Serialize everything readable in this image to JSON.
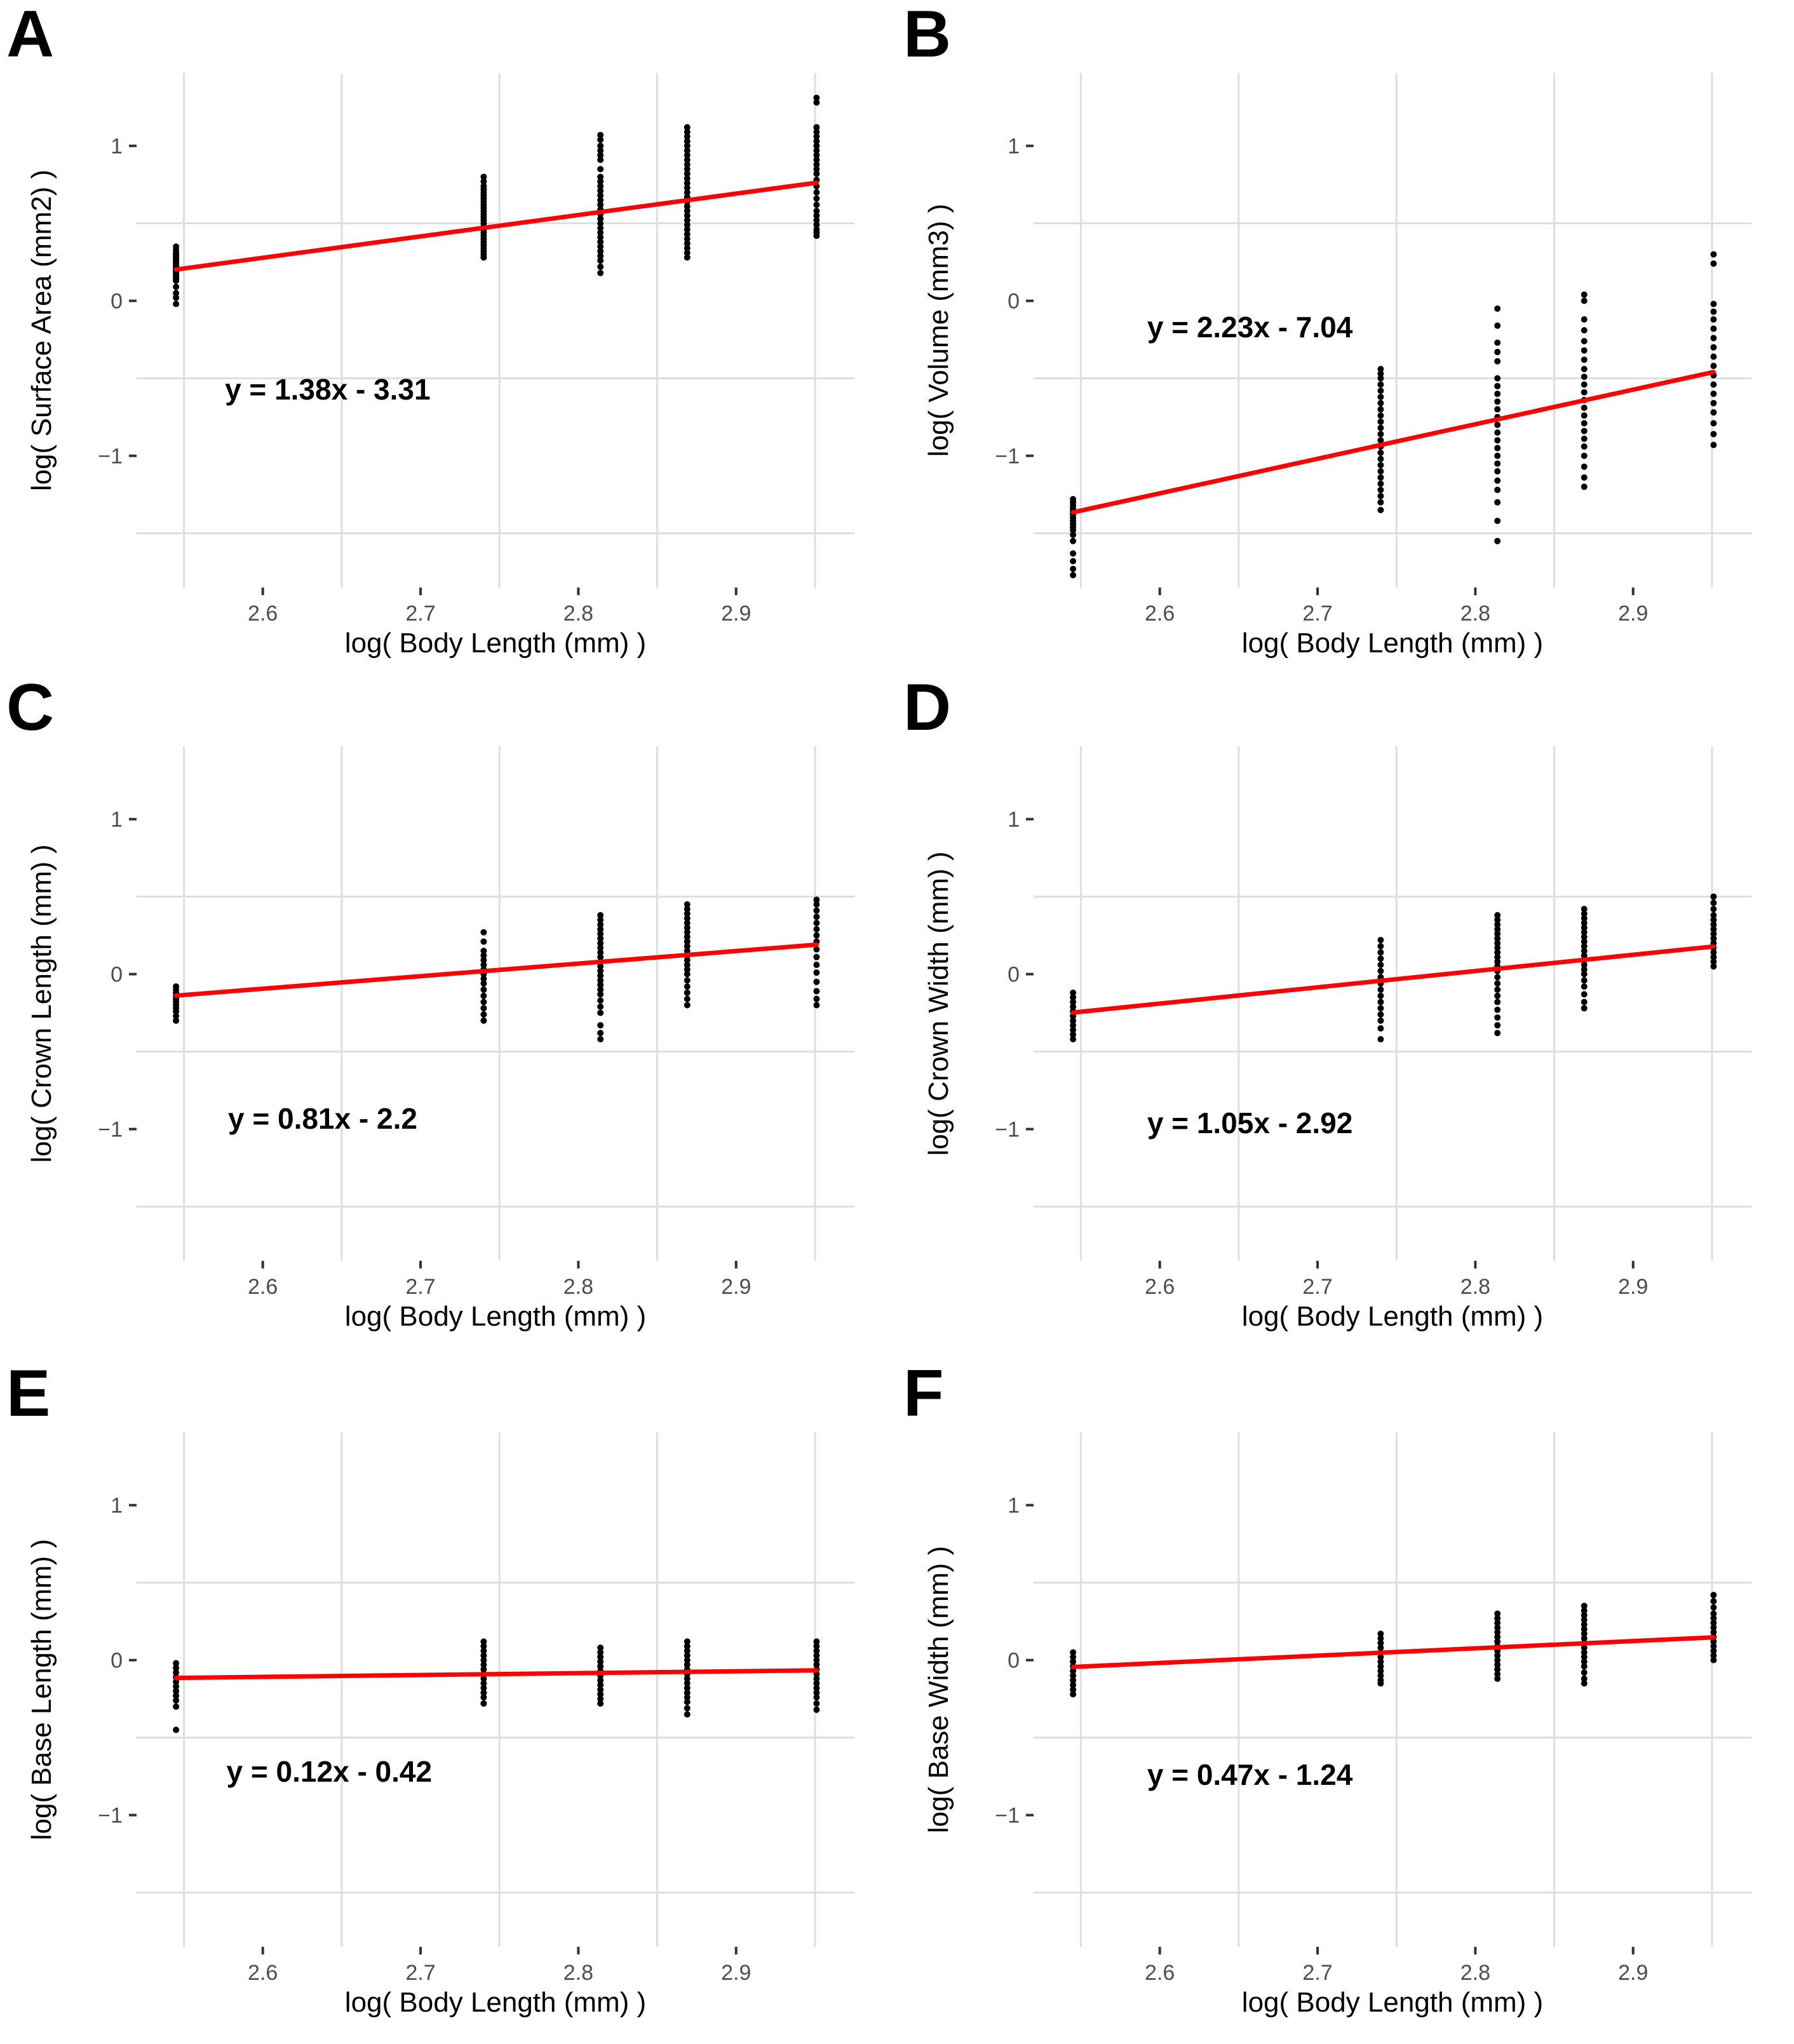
{
  "figure": {
    "background": "#FFFFFF",
    "panel_letters": [
      "A",
      "B",
      "C",
      "D",
      "E",
      "F"
    ]
  },
  "style": {
    "point_color": "#000000",
    "line_color": "#FF0000",
    "grid_color": "#DEDEDE",
    "tick_label_color": "#4D4D4D",
    "tick_mark_color": "#333333",
    "axis_title_color": "#000000",
    "equation_color": "#000000"
  },
  "axes_shared": {
    "xlim": [
      2.52,
      2.975
    ],
    "ylim": [
      -1.85,
      1.47
    ],
    "x_ticks": {
      "values": [
        2.6,
        2.7,
        2.8,
        2.9
      ],
      "labels": [
        "2.6",
        "2.7",
        "2.8",
        "2.9"
      ]
    },
    "y_ticks": {
      "values": [
        1,
        0,
        -1
      ],
      "labels": [
        "1",
        "0",
        "−1"
      ]
    },
    "grid_x": [
      2.55,
      2.65,
      2.75,
      2.85,
      2.95
    ],
    "grid_y": [
      0.5,
      -0.5,
      -1.5
    ],
    "grid_major_shown": false,
    "xlabel": "log( Body Length (mm) )"
  },
  "chart_data": [
    {
      "type": "scatter",
      "panel_label": "A",
      "xlabel": "log( Body Length (mm) )",
      "ylabel": "log( Surface Area (mm2) )",
      "equation": "y = 1.38x - 3.31",
      "slope": 1.38,
      "intercept": -3.31,
      "line_x": [
        2.545,
        2.951
      ],
      "eq_anchor": {
        "x": 2.576,
        "y": -0.57
      },
      "clusters": [
        {
          "x": 2.545,
          "ys": [
            0.35,
            0.33,
            0.31,
            0.3,
            0.29,
            0.28,
            0.27,
            0.26,
            0.25,
            0.24,
            0.23,
            0.22,
            0.21,
            0.2,
            0.19,
            0.18,
            0.17,
            0.16,
            0.15,
            0.14,
            0.13,
            0.09,
            0.05,
            0.02,
            -0.02
          ]
        },
        {
          "x": 2.74,
          "ys": [
            0.8,
            0.77,
            0.74,
            0.72,
            0.7,
            0.68,
            0.66,
            0.64,
            0.62,
            0.6,
            0.58,
            0.56,
            0.54,
            0.52,
            0.5,
            0.48,
            0.46,
            0.44,
            0.42,
            0.4,
            0.38,
            0.36,
            0.34,
            0.32,
            0.3,
            0.28
          ]
        },
        {
          "x": 2.814,
          "ys": [
            1.07,
            1.04,
            1.0,
            0.97,
            0.94,
            0.91,
            0.85,
            0.8,
            0.77,
            0.74,
            0.71,
            0.68,
            0.65,
            0.62,
            0.59,
            0.56,
            0.53,
            0.5,
            0.47,
            0.44,
            0.41,
            0.38,
            0.35,
            0.32,
            0.29,
            0.26,
            0.22,
            0.18
          ]
        },
        {
          "x": 2.869,
          "ys": [
            1.12,
            1.09,
            1.06,
            1.03,
            1.0,
            0.97,
            0.94,
            0.91,
            0.88,
            0.85,
            0.82,
            0.79,
            0.76,
            0.73,
            0.7,
            0.67,
            0.64,
            0.61,
            0.58,
            0.55,
            0.52,
            0.49,
            0.46,
            0.43,
            0.4,
            0.37,
            0.34,
            0.31,
            0.28
          ]
        },
        {
          "x": 2.951,
          "ys": [
            1.31,
            1.28,
            1.12,
            1.09,
            1.06,
            1.03,
            1.0,
            0.97,
            0.94,
            0.91,
            0.88,
            0.85,
            0.82,
            0.78,
            0.74,
            0.7,
            0.66,
            0.62,
            0.58,
            0.55,
            0.52,
            0.49,
            0.46,
            0.44,
            0.42
          ]
        }
      ]
    },
    {
      "type": "scatter",
      "panel_label": "B",
      "xlabel": "log( Body Length (mm) )",
      "ylabel": "log( Volume (mm3) )",
      "equation": "y = 2.23x - 7.04",
      "slope": 2.23,
      "intercept": -7.04,
      "line_x": [
        2.545,
        2.951
      ],
      "eq_anchor": {
        "x": 2.592,
        "y": -0.17
      },
      "clusters": [
        {
          "x": 2.545,
          "ys": [
            -1.28,
            -1.3,
            -1.32,
            -1.34,
            -1.36,
            -1.38,
            -1.4,
            -1.42,
            -1.44,
            -1.46,
            -1.48,
            -1.51,
            -1.55,
            -1.63,
            -1.68,
            -1.73,
            -1.77
          ]
        },
        {
          "x": 2.74,
          "ys": [
            -0.44,
            -0.47,
            -0.5,
            -0.54,
            -0.58,
            -0.62,
            -0.66,
            -0.7,
            -0.74,
            -0.78,
            -0.82,
            -0.86,
            -0.9,
            -0.94,
            -0.98,
            -1.02,
            -1.06,
            -1.1,
            -1.14,
            -1.18,
            -1.22,
            -1.26,
            -1.3,
            -1.35
          ]
        },
        {
          "x": 2.814,
          "ys": [
            -0.05,
            -0.16,
            -0.27,
            -0.33,
            -0.39,
            -0.5,
            -0.55,
            -0.6,
            -0.65,
            -0.7,
            -0.75,
            -0.8,
            -0.85,
            -0.9,
            -0.95,
            -1.0,
            -1.05,
            -1.1,
            -1.16,
            -1.22,
            -1.3,
            -1.42,
            -1.55
          ]
        },
        {
          "x": 2.869,
          "ys": [
            0.04,
            0.0,
            -0.12,
            -0.19,
            -0.26,
            -0.32,
            -0.38,
            -0.44,
            -0.49,
            -0.54,
            -0.59,
            -0.64,
            -0.69,
            -0.74,
            -0.79,
            -0.84,
            -0.89,
            -0.94,
            -1.0,
            -1.07,
            -1.14,
            -1.2
          ]
        },
        {
          "x": 2.951,
          "ys": [
            0.3,
            0.24,
            -0.02,
            -0.07,
            -0.12,
            -0.18,
            -0.24,
            -0.3,
            -0.36,
            -0.42,
            -0.48,
            -0.54,
            -0.6,
            -0.66,
            -0.72,
            -0.79,
            -0.86,
            -0.93
          ]
        }
      ]
    },
    {
      "type": "scatter",
      "panel_label": "C",
      "xlabel": "log( Body Length (mm) )",
      "ylabel": "log( Crown Length (mm) )",
      "equation": "y = 0.81x - 2.2",
      "slope": 0.81,
      "intercept": -2.2,
      "line_x": [
        2.545,
        2.951
      ],
      "eq_anchor": {
        "x": 2.578,
        "y": -0.93
      },
      "clusters": [
        {
          "x": 2.545,
          "ys": [
            -0.08,
            -0.1,
            -0.12,
            -0.14,
            -0.16,
            -0.18,
            -0.2,
            -0.22,
            -0.24,
            -0.27,
            -0.3
          ]
        },
        {
          "x": 2.74,
          "ys": [
            0.27,
            0.21,
            0.15,
            0.12,
            0.09,
            0.06,
            0.03,
            0.0,
            -0.03,
            -0.06,
            -0.1,
            -0.14,
            -0.18,
            -0.22,
            -0.26,
            -0.3
          ]
        },
        {
          "x": 2.814,
          "ys": [
            0.38,
            0.35,
            0.32,
            0.29,
            0.26,
            0.23,
            0.2,
            0.17,
            0.14,
            0.11,
            0.08,
            0.05,
            0.02,
            -0.01,
            -0.04,
            -0.07,
            -0.1,
            -0.13,
            -0.17,
            -0.21,
            -0.25,
            -0.33,
            -0.38,
            -0.42
          ]
        },
        {
          "x": 2.869,
          "ys": [
            0.45,
            0.42,
            0.39,
            0.36,
            0.33,
            0.3,
            0.27,
            0.24,
            0.21,
            0.18,
            0.15,
            0.12,
            0.09,
            0.06,
            0.03,
            0.0,
            -0.04,
            -0.08,
            -0.12,
            -0.16,
            -0.2
          ]
        },
        {
          "x": 2.951,
          "ys": [
            0.48,
            0.45,
            0.41,
            0.37,
            0.33,
            0.29,
            0.25,
            0.21,
            0.16,
            0.11,
            0.06,
            0.01,
            -0.05,
            -0.11,
            -0.16,
            -0.2
          ]
        }
      ]
    },
    {
      "type": "scatter",
      "panel_label": "D",
      "xlabel": "log( Body Length (mm) )",
      "ylabel": "log( Crown Width (mm) )",
      "equation": "y = 1.05x - 2.92",
      "slope": 1.05,
      "intercept": -2.92,
      "line_x": [
        2.545,
        2.951
      ],
      "eq_anchor": {
        "x": 2.592,
        "y": -0.96
      },
      "clusters": [
        {
          "x": 2.545,
          "ys": [
            -0.12,
            -0.15,
            -0.18,
            -0.21,
            -0.24,
            -0.27,
            -0.3,
            -0.33,
            -0.36,
            -0.39,
            -0.42
          ]
        },
        {
          "x": 2.74,
          "ys": [
            0.22,
            0.18,
            0.14,
            0.1,
            0.06,
            0.02,
            -0.02,
            -0.06,
            -0.1,
            -0.14,
            -0.18,
            -0.22,
            -0.26,
            -0.3,
            -0.35,
            -0.42
          ]
        },
        {
          "x": 2.814,
          "ys": [
            0.38,
            0.35,
            0.32,
            0.29,
            0.26,
            0.23,
            0.2,
            0.17,
            0.14,
            0.11,
            0.08,
            0.05,
            0.02,
            -0.02,
            -0.06,
            -0.1,
            -0.14,
            -0.18,
            -0.23,
            -0.28,
            -0.33,
            -0.38
          ]
        },
        {
          "x": 2.869,
          "ys": [
            0.42,
            0.39,
            0.36,
            0.33,
            0.3,
            0.27,
            0.24,
            0.21,
            0.18,
            0.15,
            0.12,
            0.09,
            0.06,
            0.03,
            0.0,
            -0.04,
            -0.08,
            -0.13,
            -0.18,
            -0.22
          ]
        },
        {
          "x": 2.951,
          "ys": [
            0.5,
            0.46,
            0.42,
            0.38,
            0.35,
            0.32,
            0.29,
            0.26,
            0.23,
            0.2,
            0.17,
            0.14,
            0.11,
            0.08,
            0.05
          ]
        }
      ]
    },
    {
      "type": "scatter",
      "panel_label": "E",
      "xlabel": "log( Body Length (mm) )",
      "ylabel": "log( Base Length (mm) )",
      "equation": "y = 0.12x - 0.42",
      "slope": 0.12,
      "intercept": -0.42,
      "line_x": [
        2.545,
        2.951
      ],
      "eq_anchor": {
        "x": 2.577,
        "y": -0.72
      },
      "clusters": [
        {
          "x": 2.545,
          "ys": [
            -0.02,
            -0.05,
            -0.08,
            -0.11,
            -0.14,
            -0.17,
            -0.2,
            -0.23,
            -0.26,
            -0.3,
            -0.45
          ]
        },
        {
          "x": 2.74,
          "ys": [
            0.12,
            0.09,
            0.06,
            0.03,
            0.0,
            -0.03,
            -0.06,
            -0.09,
            -0.12,
            -0.15,
            -0.18,
            -0.21,
            -0.24,
            -0.28
          ]
        },
        {
          "x": 2.814,
          "ys": [
            0.08,
            0.05,
            0.02,
            -0.01,
            -0.04,
            -0.07,
            -0.1,
            -0.13,
            -0.16,
            -0.19,
            -0.22,
            -0.25,
            -0.28
          ]
        },
        {
          "x": 2.869,
          "ys": [
            0.12,
            0.09,
            0.06,
            0.03,
            0.0,
            -0.03,
            -0.06,
            -0.09,
            -0.12,
            -0.15,
            -0.18,
            -0.21,
            -0.24,
            -0.27,
            -0.31,
            -0.35
          ]
        },
        {
          "x": 2.951,
          "ys": [
            0.12,
            0.09,
            0.06,
            0.03,
            0.0,
            -0.03,
            -0.06,
            -0.09,
            -0.12,
            -0.15,
            -0.18,
            -0.21,
            -0.24,
            -0.28,
            -0.32
          ]
        }
      ]
    },
    {
      "type": "scatter",
      "panel_label": "F",
      "xlabel": "log( Body Length (mm) )",
      "ylabel": "log( Base Width (mm) )",
      "equation": "y = 0.47x - 1.24",
      "slope": 0.47,
      "intercept": -1.24,
      "line_x": [
        2.545,
        2.951
      ],
      "eq_anchor": {
        "x": 2.592,
        "y": -0.74
      },
      "clusters": [
        {
          "x": 2.545,
          "ys": [
            0.05,
            0.02,
            -0.01,
            -0.04,
            -0.07,
            -0.1,
            -0.13,
            -0.16,
            -0.19,
            -0.22
          ]
        },
        {
          "x": 2.74,
          "ys": [
            0.17,
            0.14,
            0.11,
            0.08,
            0.05,
            0.02,
            -0.01,
            -0.04,
            -0.07,
            -0.1,
            -0.13,
            -0.15
          ]
        },
        {
          "x": 2.814,
          "ys": [
            0.3,
            0.27,
            0.24,
            0.21,
            0.18,
            0.15,
            0.12,
            0.09,
            0.06,
            0.03,
            0.0,
            -0.03,
            -0.06,
            -0.09,
            -0.12
          ]
        },
        {
          "x": 2.869,
          "ys": [
            0.35,
            0.32,
            0.29,
            0.26,
            0.23,
            0.2,
            0.17,
            0.14,
            0.11,
            0.08,
            0.05,
            0.02,
            -0.01,
            -0.04,
            -0.08,
            -0.12,
            -0.15
          ]
        },
        {
          "x": 2.951,
          "ys": [
            0.42,
            0.38,
            0.34,
            0.3,
            0.27,
            0.24,
            0.21,
            0.18,
            0.15,
            0.12,
            0.09,
            0.06,
            0.03,
            0.0
          ]
        }
      ]
    }
  ]
}
